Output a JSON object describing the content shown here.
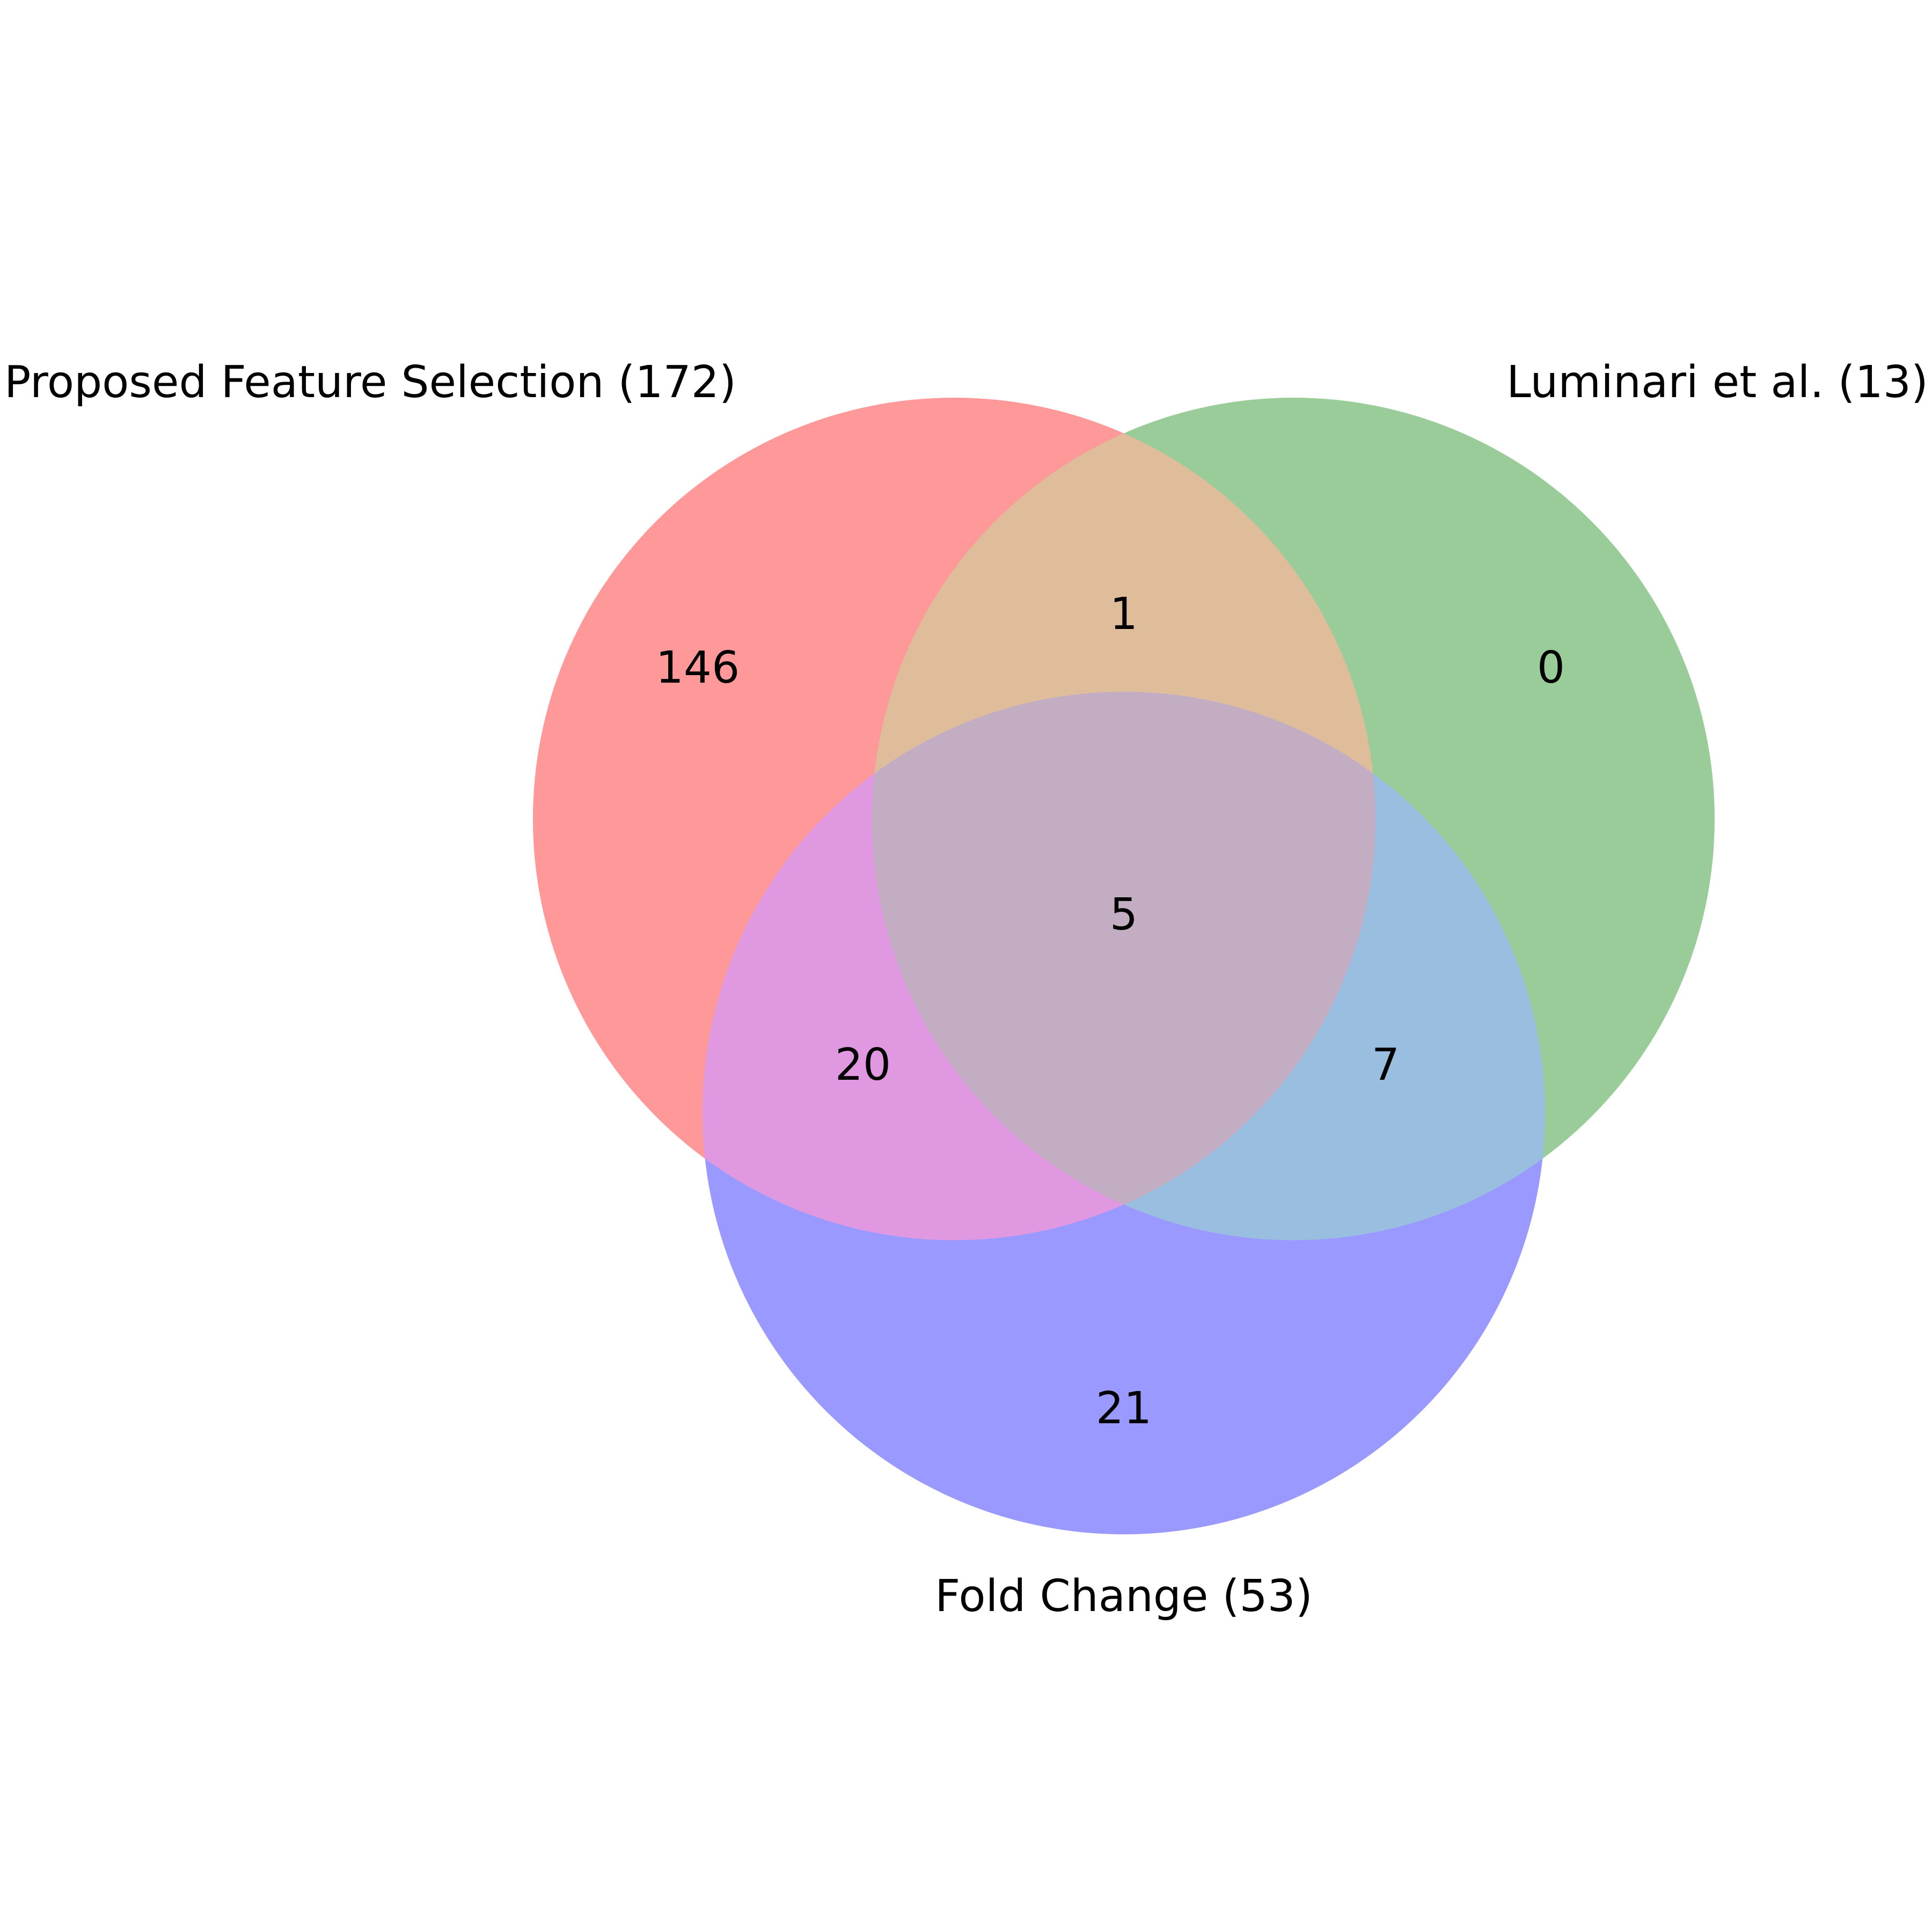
{
  "diagram": {
    "type": "venn3",
    "sets": [
      {
        "id": "A",
        "label": "Proposed Feature Selection (172)",
        "color": "#ff9999"
      },
      {
        "id": "B",
        "label": "Luminari et al. (13)",
        "color": "#99cc99"
      },
      {
        "id": "C",
        "label": "Fold Change (53)",
        "color": "#9999ff"
      }
    ],
    "regions": {
      "A_only": "146",
      "B_only": "0",
      "C_only": "21",
      "A_B": "1",
      "A_C": "20",
      "B_C": "7",
      "A_B_C": "5"
    },
    "region_colors": {
      "A_B": "#e0bd9a",
      "A_C": "#e099e0",
      "B_C": "#9abee0",
      "A_B_C": "#c2adc2"
    }
  }
}
